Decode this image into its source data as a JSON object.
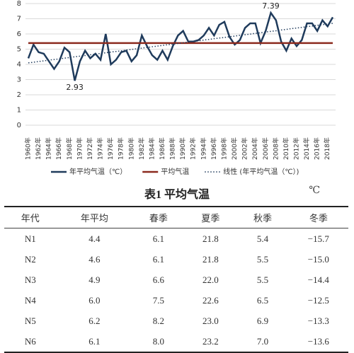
{
  "chart_data": {
    "type": "line",
    "categories": [
      "1960年",
      null,
      "1962年",
      null,
      "1964年",
      null,
      "1966年",
      null,
      "1968年",
      null,
      "1970年",
      null,
      "1972年",
      null,
      "1974年",
      null,
      "1976年",
      null,
      "1978年",
      null,
      "1980年",
      null,
      "1982年",
      null,
      "1984年",
      null,
      "1986年",
      null,
      "1988年",
      null,
      "1990年",
      null,
      "1992年",
      null,
      "1994年",
      null,
      "1996年",
      null,
      "1998年",
      null,
      "2000年",
      null,
      "2002年",
      null,
      "2004年",
      null,
      "2006年",
      null,
      "2008年",
      null,
      "2010年",
      null,
      "2012年",
      null,
      "2014年",
      null,
      "2016年",
      null,
      "2018年",
      null
    ],
    "series": [
      {
        "name": "年平均气温（℃）",
        "color": "#1f3b5c",
        "style": "solid",
        "values": [
          4.4,
          5.3,
          4.8,
          4.7,
          4.2,
          3.7,
          4.2,
          5.1,
          4.8,
          2.93,
          4.2,
          4.9,
          4.4,
          4.7,
          4.3,
          6.0,
          4.0,
          4.3,
          4.8,
          4.9,
          4.2,
          4.6,
          5.9,
          5.2,
          4.6,
          4.3,
          4.9,
          4.3,
          5.2,
          5.9,
          6.2,
          5.5,
          5.5,
          5.6,
          5.9,
          6.4,
          5.9,
          6.6,
          6.8,
          5.8,
          5.3,
          5.6,
          6.4,
          6.7,
          6.7,
          5.4,
          6.2,
          7.39,
          6.9,
          5.5,
          4.9,
          5.7,
          5.2,
          5.6,
          6.7,
          6.7,
          6.2,
          6.9,
          6.5,
          7.1
        ],
        "value_labels": [
          null,
          null,
          null,
          null,
          null,
          null,
          null,
          null,
          null,
          "2.93",
          null,
          null,
          null,
          null,
          null,
          null,
          null,
          null,
          null,
          null,
          null,
          null,
          null,
          null,
          null,
          null,
          null,
          null,
          null,
          null,
          null,
          null,
          null,
          null,
          null,
          null,
          null,
          null,
          null,
          null,
          null,
          null,
          null,
          null,
          null,
          null,
          null,
          "7.39",
          null,
          null,
          null,
          null,
          null,
          null,
          null,
          null,
          null,
          null,
          null,
          null
        ]
      },
      {
        "name": "平均气温",
        "color": "#8b2a1e",
        "style": "solid",
        "values": [
          5.4,
          5.4,
          5.4,
          5.4,
          5.4,
          5.4,
          5.4,
          5.4,
          5.4,
          5.4,
          5.4,
          5.4,
          5.4,
          5.4,
          5.4,
          5.4,
          5.4,
          5.4,
          5.4,
          5.4,
          5.4,
          5.4,
          5.4,
          5.4,
          5.4,
          5.4,
          5.4,
          5.4,
          5.4,
          5.4,
          5.4,
          5.4,
          5.4,
          5.4,
          5.4,
          5.4,
          5.4,
          5.4,
          5.4,
          5.4,
          5.4,
          5.4,
          5.4,
          5.4,
          5.4,
          5.4,
          5.4,
          5.4,
          5.4,
          5.4,
          5.4,
          5.4,
          5.4,
          5.4,
          5.4,
          5.4,
          5.4,
          5.4,
          5.4,
          5.4
        ]
      },
      {
        "name": "线性 (年平均气温（℃）)",
        "color": "#1f3b5c",
        "style": "dotted",
        "values": [
          4.1,
          4.14,
          4.19,
          4.23,
          4.28,
          4.32,
          4.36,
          4.41,
          4.45,
          4.5,
          4.54,
          4.58,
          4.63,
          4.67,
          4.72,
          4.76,
          4.81,
          4.85,
          4.89,
          4.94,
          4.98,
          5.03,
          5.07,
          5.11,
          5.16,
          5.2,
          5.25,
          5.29,
          5.33,
          5.38,
          5.42,
          5.47,
          5.51,
          5.55,
          5.6,
          5.64,
          5.69,
          5.73,
          5.77,
          5.82,
          5.86,
          5.91,
          5.95,
          5.99,
          6.04,
          6.08,
          6.13,
          6.17,
          6.21,
          6.26,
          6.3,
          6.35,
          6.39,
          6.43,
          6.48,
          6.52,
          6.57,
          6.61,
          6.66,
          6.7
        ]
      }
    ],
    "ylim": [
      0,
      8
    ],
    "yticks": [
      0,
      1,
      2,
      3,
      4,
      5,
      6,
      7,
      8
    ],
    "grid": true,
    "legend": "bottom"
  },
  "table": {
    "title": "表1  平均气温",
    "unit": "℃",
    "header": [
      "年代",
      "年平均",
      "春季",
      "夏季",
      "秋季",
      "冬季"
    ],
    "rows": [
      [
        "N1",
        "4.4",
        "6.1",
        "21.8",
        "5.4",
        "−15.7"
      ],
      [
        "N2",
        "4.6",
        "6.1",
        "21.8",
        "5.5",
        "−15.0"
      ],
      [
        "N3",
        "4.9",
        "6.6",
        "22.0",
        "5.5",
        "−14.4"
      ],
      [
        "N4",
        "6.0",
        "7.5",
        "22.6",
        "6.5",
        "−12.5"
      ],
      [
        "N5",
        "6.2",
        "8.2",
        "23.0",
        "6.9",
        "−13.3"
      ],
      [
        "N6",
        "6.1",
        "8.0",
        "23.2",
        "7.0",
        "−13.6"
      ]
    ]
  }
}
